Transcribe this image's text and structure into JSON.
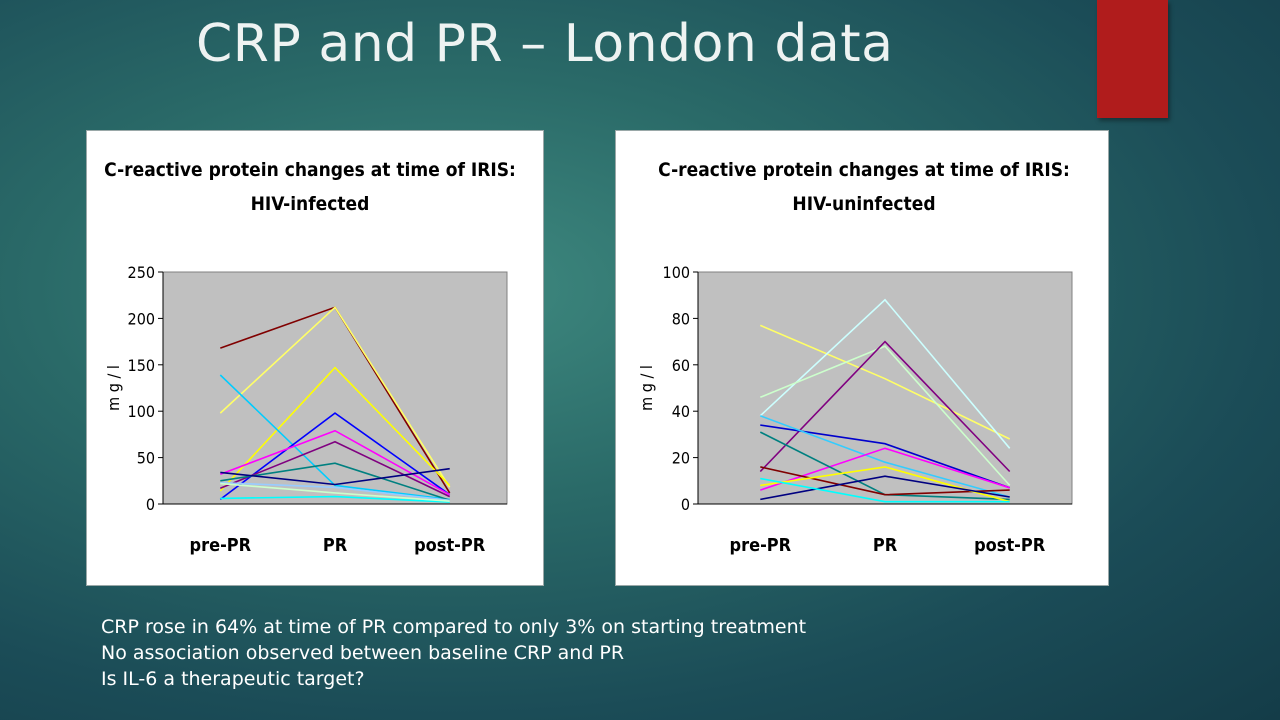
{
  "slide": {
    "title": "CRP and PR – London data",
    "accent_color": "#b01c1c",
    "bullets": [
      "CRP rose in 64% at time of PR compared to only 3% on starting treatment",
      "No association observed between baseline CRP and PR",
      "Is IL-6 a therapeutic target?"
    ]
  },
  "chart_data": [
    {
      "type": "line",
      "title": "C-reactive protein changes at time of IRIS:",
      "subtitle": "HIV-infected",
      "xlabel": "",
      "ylabel": "m g / l",
      "categories": [
        "pre-PR",
        "PR",
        "post-PR"
      ],
      "ylim": [
        0,
        250
      ],
      "yticks": [
        0,
        50,
        100,
        150,
        200,
        250
      ],
      "plot_bg": "#c0c0c0",
      "legend": "none",
      "series": [
        {
          "color": "#800000",
          "values": [
            168,
            212,
            12
          ]
        },
        {
          "color": "#ffff66",
          "values": [
            98,
            212,
            18
          ]
        },
        {
          "color": "#ffff00",
          "values": [
            14,
            147,
            20
          ]
        },
        {
          "color": "#00ccff",
          "values": [
            139,
            20,
            5
          ]
        },
        {
          "color": "#0000ff",
          "values": [
            5,
            98,
            10
          ]
        },
        {
          "color": "#ff00ff",
          "values": [
            32,
            79,
            10
          ]
        },
        {
          "color": "#800080",
          "values": [
            17,
            67,
            8
          ]
        },
        {
          "color": "#008080",
          "values": [
            25,
            44,
            4
          ]
        },
        {
          "color": "#000080",
          "values": [
            34,
            21,
            38
          ]
        },
        {
          "color": "#99ccff",
          "values": [
            23,
            18,
            4
          ]
        },
        {
          "color": "#00ffff",
          "values": [
            6,
            8,
            2
          ]
        },
        {
          "color": "#ccffcc",
          "values": [
            22,
            12,
            3
          ]
        }
      ]
    },
    {
      "type": "line",
      "title": "C-reactive protein changes at time of IRIS:",
      "subtitle": "HIV-uninfected",
      "xlabel": "",
      "ylabel": "m g / l",
      "categories": [
        "pre-PR",
        "PR",
        "post-PR"
      ],
      "ylim": [
        0,
        100
      ],
      "yticks": [
        0,
        20,
        40,
        60,
        80,
        100
      ],
      "plot_bg": "#c0c0c0",
      "legend": "none",
      "series": [
        {
          "color": "#ffff66",
          "values": [
            77,
            54,
            28
          ]
        },
        {
          "color": "#ccffff",
          "values": [
            38,
            88,
            24
          ]
        },
        {
          "color": "#ccffcc",
          "values": [
            46,
            68,
            8
          ]
        },
        {
          "color": "#800080",
          "values": [
            14,
            70,
            14
          ]
        },
        {
          "color": "#0000cc",
          "values": [
            34,
            26,
            7
          ]
        },
        {
          "color": "#33ccff",
          "values": [
            38,
            18,
            3
          ]
        },
        {
          "color": "#ff00ff",
          "values": [
            6,
            24,
            7
          ]
        },
        {
          "color": "#008080",
          "values": [
            31,
            4,
            2
          ]
        },
        {
          "color": "#800000",
          "values": [
            16,
            4,
            6
          ]
        },
        {
          "color": "#ffff00",
          "values": [
            8,
            16,
            1
          ]
        },
        {
          "color": "#000080",
          "values": [
            2,
            12,
            3
          ]
        },
        {
          "color": "#00ffff",
          "values": [
            11,
            1,
            1
          ]
        }
      ]
    }
  ]
}
